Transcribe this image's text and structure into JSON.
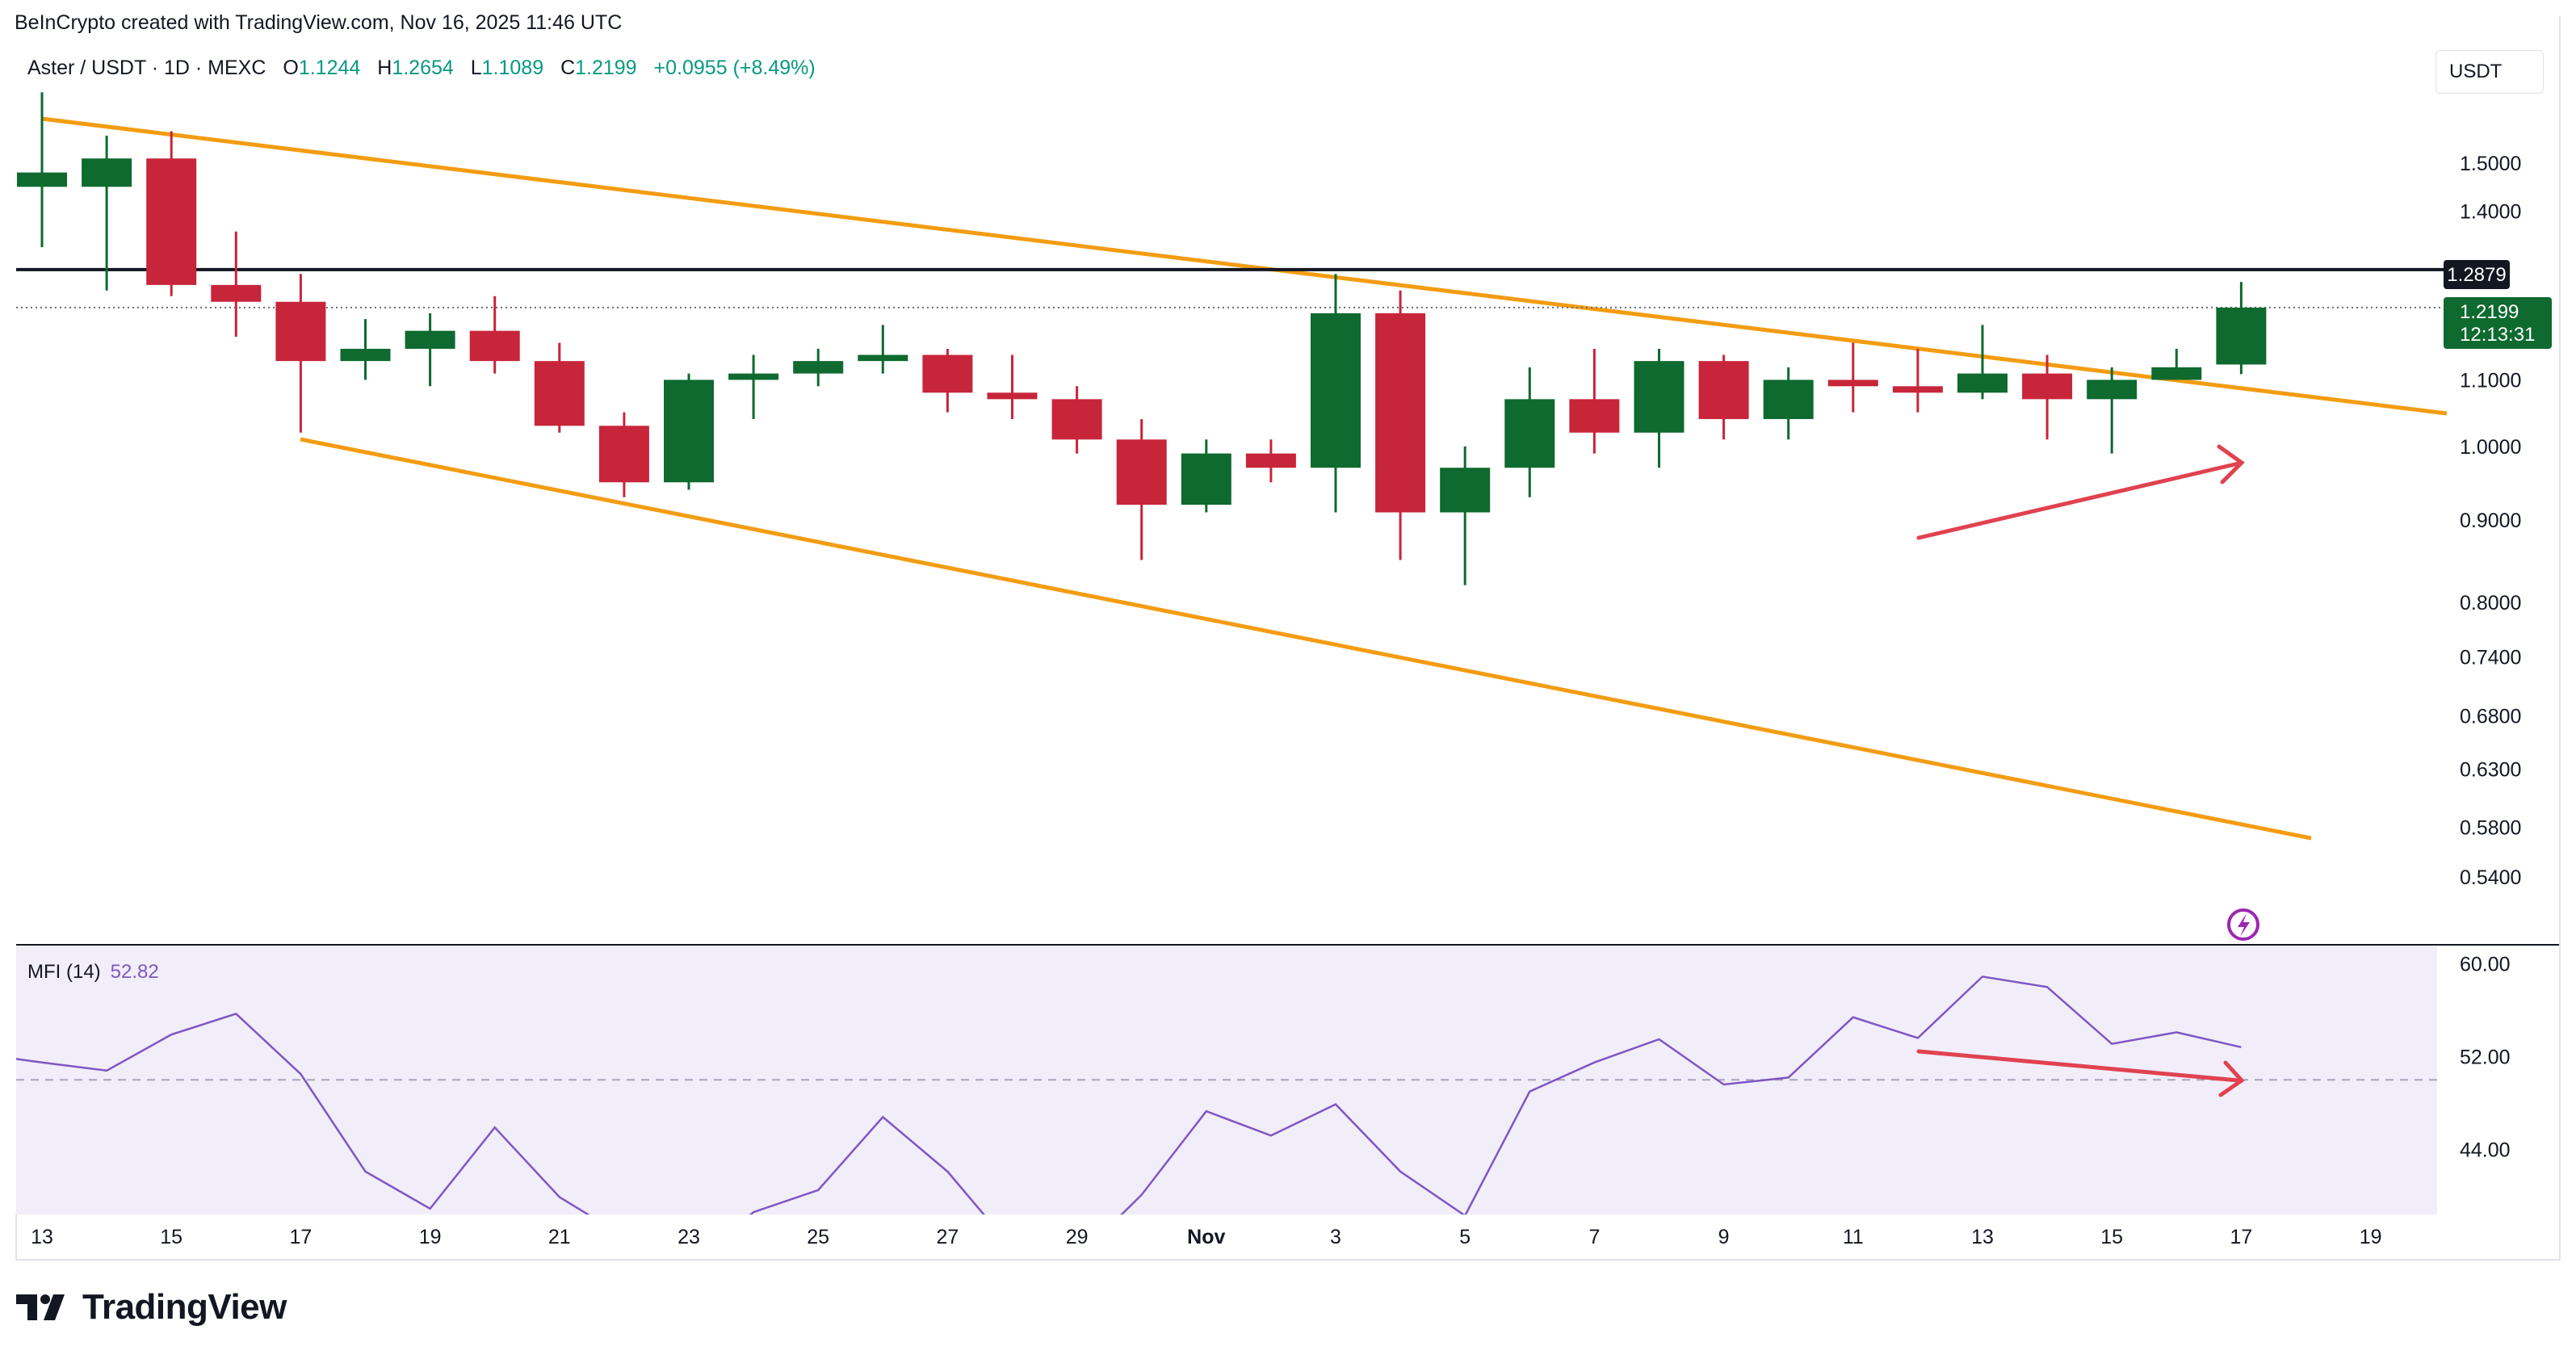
{
  "header": {
    "credit": "BeInCrypto created with TradingView.com, Nov 16, 2025 11:46 UTC"
  },
  "legend": {
    "symbol": "Aster / USDT · 1D · MEXC",
    "o_label": "O",
    "o_value": "1.1244",
    "h_label": "H",
    "h_value": "1.2654",
    "l_label": "L",
    "l_value": "1.1089",
    "c_label": "C",
    "c_value": "1.2199",
    "change": "+0.0955 (+8.49%)"
  },
  "currency_button": "USDT",
  "price_tags": {
    "resistance": "1.2879",
    "last_price": "1.2199",
    "countdown": "12:13:31"
  },
  "mfi": {
    "name": "MFI (14)",
    "value": "52.82"
  },
  "brand": {
    "name": "TradingView"
  },
  "colors": {
    "up": "#0e6a2f",
    "down": "#c7253a",
    "trendline": "#f39c12",
    "arrow": "#e0424f",
    "mfi_line": "#7e57c2",
    "mfi_bg": "#f1edf9",
    "resistance_line": "#131722"
  },
  "chart_data": {
    "type": "candlestick",
    "x_tick_labels": [
      "13",
      "15",
      "17",
      "19",
      "21",
      "23",
      "25",
      "27",
      "29",
      "Nov",
      "3",
      "5",
      "7",
      "9",
      "11",
      "13",
      "15",
      "17",
      "19"
    ],
    "y_tick_labels": [
      "1.5000",
      "1.4000",
      "1.1000",
      "1.0000",
      "0.9000",
      "0.8000",
      "0.7400",
      "0.6800",
      "0.6300",
      "0.5800",
      "0.5400"
    ],
    "y_scale": "log",
    "resistance_level": 1.2879,
    "last_close": 1.2199,
    "candles": [
      {
        "date": "Oct 13",
        "o": 1.45,
        "h": 1.66,
        "l": 1.33,
        "c": 1.48
      },
      {
        "date": "Oct 14",
        "o": 1.45,
        "h": 1.56,
        "l": 1.25,
        "c": 1.51
      },
      {
        "date": "Oct 15",
        "o": 1.51,
        "h": 1.57,
        "l": 1.24,
        "c": 1.26
      },
      {
        "date": "Oct 16",
        "o": 1.26,
        "h": 1.36,
        "l": 1.17,
        "c": 1.23
      },
      {
        "date": "Oct 17",
        "o": 1.23,
        "h": 1.28,
        "l": 1.02,
        "c": 1.13
      },
      {
        "date": "Oct 18",
        "o": 1.13,
        "h": 1.2,
        "l": 1.1,
        "c": 1.15
      },
      {
        "date": "Oct 19",
        "o": 1.15,
        "h": 1.21,
        "l": 1.09,
        "c": 1.18
      },
      {
        "date": "Oct 20",
        "o": 1.18,
        "h": 1.24,
        "l": 1.11,
        "c": 1.13
      },
      {
        "date": "Oct 21",
        "o": 1.13,
        "h": 1.16,
        "l": 1.02,
        "c": 1.03
      },
      {
        "date": "Oct 22",
        "o": 1.03,
        "h": 1.05,
        "l": 0.93,
        "c": 0.95
      },
      {
        "date": "Oct 23",
        "o": 0.95,
        "h": 1.11,
        "l": 0.94,
        "c": 1.1
      },
      {
        "date": "Oct 24",
        "o": 1.1,
        "h": 1.14,
        "l": 1.04,
        "c": 1.11
      },
      {
        "date": "Oct 25",
        "o": 1.11,
        "h": 1.15,
        "l": 1.09,
        "c": 1.13
      },
      {
        "date": "Oct 26",
        "o": 1.13,
        "h": 1.19,
        "l": 1.11,
        "c": 1.14
      },
      {
        "date": "Oct 27",
        "o": 1.14,
        "h": 1.15,
        "l": 1.05,
        "c": 1.08
      },
      {
        "date": "Oct 28",
        "o": 1.08,
        "h": 1.14,
        "l": 1.04,
        "c": 1.07
      },
      {
        "date": "Oct 29",
        "o": 1.07,
        "h": 1.09,
        "l": 0.99,
        "c": 1.01
      },
      {
        "date": "Oct 30",
        "o": 1.01,
        "h": 1.04,
        "l": 0.85,
        "c": 0.92
      },
      {
        "date": "Oct 31",
        "o": 0.92,
        "h": 1.01,
        "l": 0.91,
        "c": 0.99
      },
      {
        "date": "Nov 1",
        "o": 0.99,
        "h": 1.01,
        "l": 0.95,
        "c": 0.97
      },
      {
        "date": "Nov 2",
        "o": 0.97,
        "h": 1.28,
        "l": 0.91,
        "c": 1.21
      },
      {
        "date": "Nov 3",
        "o": 1.21,
        "h": 1.25,
        "l": 0.85,
        "c": 0.91
      },
      {
        "date": "Nov 4",
        "o": 0.91,
        "h": 1.0,
        "l": 0.82,
        "c": 0.97
      },
      {
        "date": "Nov 5",
        "o": 0.97,
        "h": 1.12,
        "l": 0.93,
        "c": 1.07
      },
      {
        "date": "Nov 6",
        "o": 1.07,
        "h": 1.15,
        "l": 0.99,
        "c": 1.02
      },
      {
        "date": "Nov 7",
        "o": 1.02,
        "h": 1.15,
        "l": 0.97,
        "c": 1.13
      },
      {
        "date": "Nov 8",
        "o": 1.13,
        "h": 1.14,
        "l": 1.01,
        "c": 1.04
      },
      {
        "date": "Nov 9",
        "o": 1.04,
        "h": 1.12,
        "l": 1.01,
        "c": 1.1
      },
      {
        "date": "Nov 10",
        "o": 1.1,
        "h": 1.16,
        "l": 1.05,
        "c": 1.09
      },
      {
        "date": "Nov 11",
        "o": 1.09,
        "h": 1.15,
        "l": 1.05,
        "c": 1.08
      },
      {
        "date": "Nov 12",
        "o": 1.08,
        "h": 1.19,
        "l": 1.07,
        "c": 1.11
      },
      {
        "date": "Nov 13",
        "o": 1.11,
        "h": 1.14,
        "l": 1.01,
        "c": 1.07
      },
      {
        "date": "Nov 14",
        "o": 1.07,
        "h": 1.12,
        "l": 0.99,
        "c": 1.1
      },
      {
        "date": "Nov 15",
        "o": 1.1,
        "h": 1.15,
        "l": 1.1,
        "c": 1.12
      },
      {
        "date": "Nov 16",
        "o": 1.1244,
        "h": 1.2654,
        "l": 1.1089,
        "c": 1.2199
      }
    ],
    "mfi_series": [
      51.5,
      50.8,
      53.9,
      55.7,
      50.5,
      42.1,
      38.9,
      45.9,
      39.9,
      36.5,
      33.8,
      38.6,
      40.5,
      46.8,
      42.1,
      35.5,
      34.6,
      40.1,
      47.3,
      45.2,
      47.9,
      42.1,
      38.3,
      49.0,
      51.5,
      53.5,
      49.6,
      50.2,
      55.4,
      53.6,
      58.9,
      58.0,
      53.1,
      54.1,
      52.82
    ],
    "mfi_y_tick_labels": [
      "60.00",
      "52.00",
      "44.00"
    ],
    "mfi_ylim": [
      38.4,
      61.5
    ],
    "mfi_reference_level": 50
  }
}
